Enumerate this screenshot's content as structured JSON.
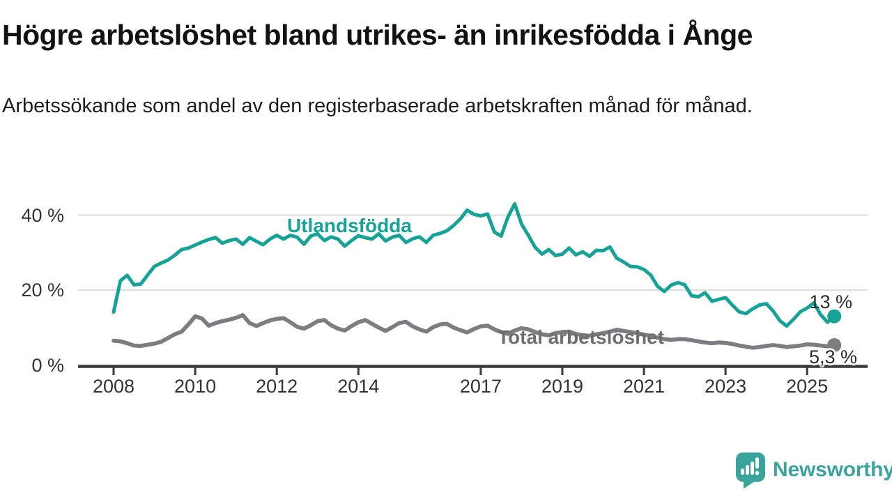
{
  "header": {
    "title": "Högre arbetslöshet bland utrikes- än inrikesfödda i Ånge",
    "subtitle": "Arbetssökande som andel av den registerbaserade arbetskraften månad för månad."
  },
  "footer": {
    "brand": "Newsworthy",
    "brand_color": "#3aa49a",
    "logo_icon": "newsworthy-speech-bubble-bar-chart-icon"
  },
  "colors": {
    "axis_text": "#333333",
    "axis_line": "#3a3a3a",
    "gridline": "#dedede",
    "background": "#ffffff"
  },
  "chart_data": {
    "type": "line",
    "title": "Högre arbetslöshet bland utrikes- än inrikesfödda i Ånge",
    "subtitle": "Arbetssökande som andel av den registerbaserade arbetskraften månad för månad.",
    "grid": "horizontal",
    "legend_position": "inline-labels",
    "ylim": [
      0,
      44
    ],
    "y_ticks": [
      {
        "value": 0,
        "label": "0 %"
      },
      {
        "value": 20,
        "label": "20 %"
      },
      {
        "value": 40,
        "label": "40 %"
      }
    ],
    "x_ticks": [
      {
        "year": 2008,
        "label": "2008"
      },
      {
        "year": 2010,
        "label": "2010"
      },
      {
        "year": 2012,
        "label": "2012"
      },
      {
        "year": 2014,
        "label": "2014"
      },
      {
        "year": 2017,
        "label": "2017"
      },
      {
        "year": 2019,
        "label": "2019"
      },
      {
        "year": 2021,
        "label": "2021"
      },
      {
        "year": 2023,
        "label": "2023"
      },
      {
        "year": 2025,
        "label": "2025"
      }
    ],
    "x_range": {
      "start_year": 2008.0,
      "end_year": 2025.667,
      "interval_months": 2
    },
    "series": [
      {
        "name": "Utlandsfödda",
        "color": "#17a296",
        "end_label": "13 %",
        "end_value": 13,
        "values": [
          14.1,
          22.5,
          23.9,
          21.4,
          21.6,
          24.0,
          26.3,
          27.2,
          28.0,
          29.3,
          30.8,
          31.2,
          32.0,
          32.8,
          33.5,
          34.0,
          32.5,
          33.2,
          33.6,
          32.2,
          34.0,
          33.0,
          32.1,
          33.6,
          34.6,
          33.6,
          34.6,
          34.1,
          32.2,
          34.4,
          35.0,
          33.2,
          34.2,
          33.6,
          31.7,
          33.2,
          34.5,
          34.0,
          33.6,
          35.0,
          33.1,
          34.1,
          34.6,
          32.7,
          33.7,
          34.2,
          32.7,
          34.6,
          35.1,
          35.8,
          37.2,
          39.0,
          41.3,
          40.2,
          39.8,
          40.3,
          35.5,
          34.4,
          39.5,
          43.0,
          37.6,
          34.6,
          31.4,
          29.6,
          30.8,
          29.2,
          29.6,
          31.2,
          29.4,
          30.2,
          29.0,
          30.6,
          30.5,
          31.5,
          28.5,
          27.5,
          26.3,
          26.2,
          25.5,
          24.0,
          21.0,
          19.6,
          21.3,
          22.0,
          21.4,
          18.5,
          18.2,
          19.3,
          17.0,
          17.5,
          18.0,
          16.0,
          14.2,
          13.7,
          15.0,
          16.0,
          16.4,
          14.4,
          11.8,
          10.4,
          12.2,
          14.2,
          15.2,
          16.6,
          13.4,
          11.4,
          13.0
        ]
      },
      {
        "name": "Total arbetslöshet",
        "color": "#7d7d81",
        "end_label": "5,3 %",
        "end_value": 5.3,
        "values": [
          6.5,
          6.3,
          5.8,
          5.2,
          5.1,
          5.4,
          5.7,
          6.2,
          7.2,
          8.2,
          8.9,
          10.8,
          13.0,
          12.4,
          10.5,
          11.2,
          11.7,
          12.1,
          12.6,
          13.3,
          11.2,
          10.4,
          11.2,
          11.9,
          12.3,
          12.5,
          11.4,
          10.2,
          9.7,
          10.6,
          11.7,
          12.0,
          10.6,
          9.7,
          9.2,
          10.4,
          11.4,
          12.0,
          11.0,
          10.0,
          9.1,
          10.1,
          11.2,
          11.5,
          10.3,
          9.5,
          8.9,
          10.1,
          10.8,
          11.0,
          10.0,
          9.3,
          8.7,
          9.6,
          10.3,
          10.5,
          9.5,
          8.8,
          8.3,
          9.2,
          9.8,
          9.5,
          8.8,
          8.2,
          7.9,
          8.5,
          8.8,
          8.9,
          8.3,
          7.9,
          7.8,
          8.2,
          8.5,
          8.9,
          9.4,
          9.1,
          8.8,
          8.5,
          8.1,
          7.8,
          7.3,
          6.9,
          6.7,
          6.9,
          6.9,
          6.6,
          6.3,
          6.0,
          5.8,
          6.0,
          5.9,
          5.6,
          5.2,
          4.9,
          4.6,
          4.8,
          5.1,
          5.3,
          5.1,
          4.8,
          5.0,
          5.2,
          5.5,
          5.4,
          5.2,
          5.0,
          5.3
        ]
      }
    ]
  }
}
